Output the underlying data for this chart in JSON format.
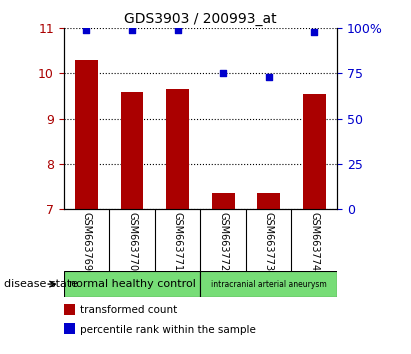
{
  "title": "GDS3903 / 200993_at",
  "samples": [
    "GSM663769",
    "GSM663770",
    "GSM663771",
    "GSM663772",
    "GSM663773",
    "GSM663774"
  ],
  "transformed_count": [
    10.3,
    9.6,
    9.65,
    7.35,
    7.35,
    9.55
  ],
  "percentile_rank": [
    99,
    99,
    99,
    75,
    73,
    98
  ],
  "ylim_left": [
    7,
    11
  ],
  "ylim_right": [
    0,
    100
  ],
  "yticks_left": [
    7,
    8,
    9,
    10,
    11
  ],
  "yticks_right": [
    0,
    25,
    50,
    75,
    100
  ],
  "ytick_labels_right": [
    "0",
    "25",
    "50",
    "75",
    "100%"
  ],
  "group1_label": "normal healthy control",
  "group2_label": "intracranial arterial aneurysm",
  "group_color": "#77DD77",
  "bar_color": "#AA0000",
  "dot_color": "#0000CC",
  "bar_width": 0.5,
  "bg_xtick": "#C8C8C8",
  "legend_bar_label": "transformed count",
  "legend_dot_label": "percentile rank within the sample",
  "disease_state_label": "disease state"
}
